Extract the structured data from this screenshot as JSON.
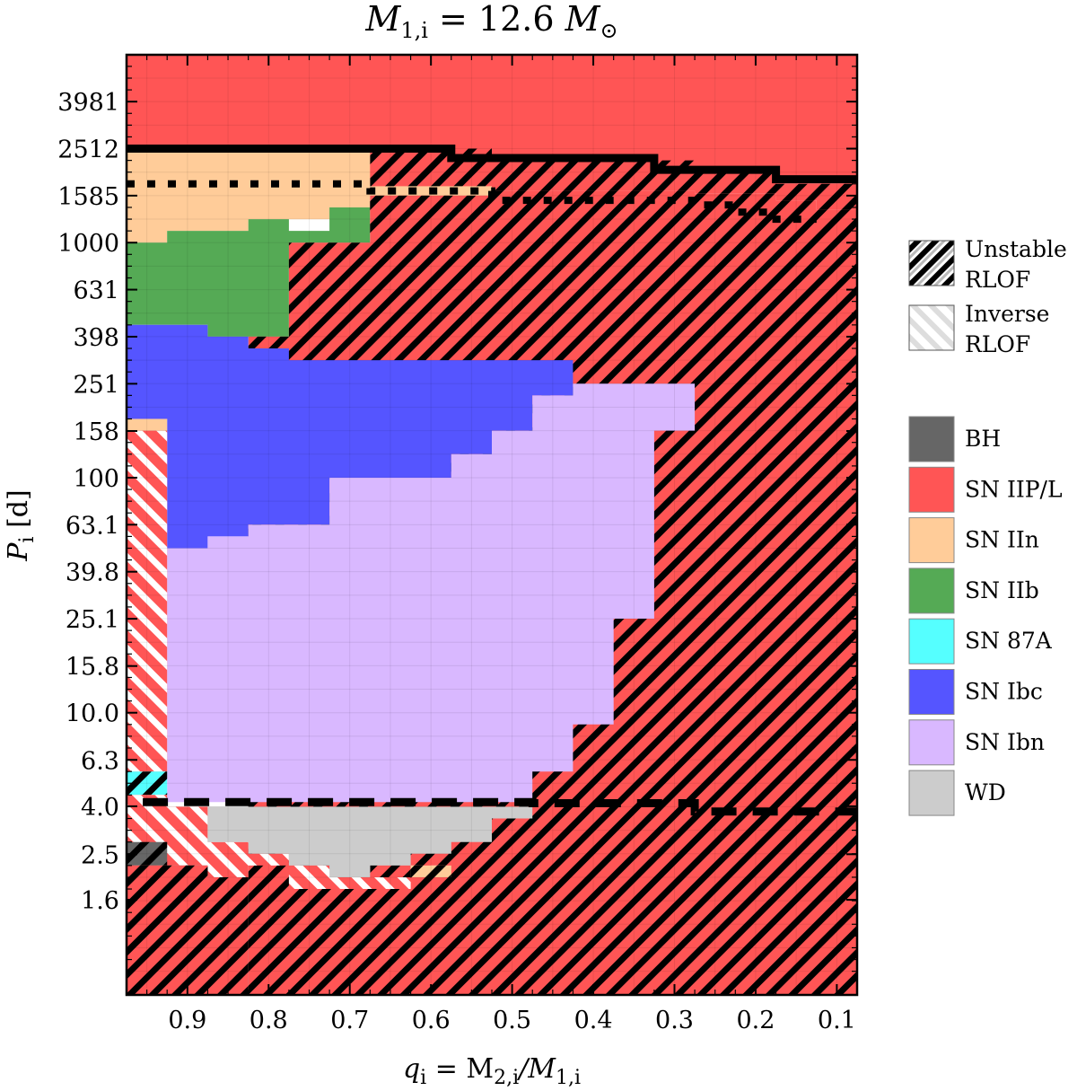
{
  "chart_data": {
    "type": "heatmap",
    "title": {
      "main": "M",
      "sub": "1,i",
      "rest": " = 12.6 ",
      "unit": "M",
      "unit_sub": "⊙"
    },
    "xlabel": {
      "main": "q",
      "sub": "i",
      "rest": " = M",
      "sub2": "2,i",
      "slash": "/M",
      "sub3": "1,i"
    },
    "ylabel": {
      "main": "P",
      "sub": "i",
      "rest": " [d]"
    },
    "x_ticks": [
      "0.9",
      "0.8",
      "0.7",
      "0.6",
      "0.5",
      "0.4",
      "0.3",
      "0.2",
      "0.1"
    ],
    "x_tick_values": [
      0.9,
      0.8,
      0.7,
      0.6,
      0.5,
      0.4,
      0.3,
      0.2,
      0.1
    ],
    "xlim": [
      0.975,
      0.075
    ],
    "x_inverted": true,
    "y_ticks": [
      "3981",
      "2512",
      "1585",
      "1000",
      "631",
      "398",
      "251",
      "158",
      "100",
      "63.1",
      "39.8",
      "25.1",
      "15.8",
      "10.0",
      "6.3",
      "4.0",
      "2.5",
      "1.6"
    ],
    "y_tick_values": [
      3981,
      2512,
      1585,
      1000,
      631,
      398,
      251,
      158,
      100,
      63.1,
      39.8,
      25.1,
      15.8,
      10.0,
      6.3,
      4.0,
      2.5,
      1.6
    ],
    "y_scale": "log",
    "ylim": [
      0.63,
      6300
    ],
    "x_grid": [
      0.95,
      0.9,
      0.85,
      0.8,
      0.75,
      0.7,
      0.65,
      0.6,
      0.55,
      0.5,
      0.45,
      0.4,
      0.35,
      0.3,
      0.25,
      0.2,
      0.15,
      0.1
    ],
    "y_grid_log": [
      3.8,
      3.7,
      3.6,
      3.5,
      3.4,
      3.3,
      3.2,
      3.1,
      3.0,
      2.9,
      2.8,
      2.7,
      2.6,
      2.5,
      2.4,
      2.3,
      2.2,
      2.1,
      2.0,
      1.9,
      1.8,
      1.7,
      1.6,
      1.5,
      1.4,
      1.3,
      1.2,
      1.1,
      1.0,
      0.9,
      0.8,
      0.7,
      0.6,
      0.5,
      0.4,
      0.3,
      0.2,
      0.1,
      0.0,
      -0.1
    ],
    "colors": {
      "BH": "#666666",
      "SN IIP/L": "#ff5555",
      "SN IIn": "#ffcc99",
      "SN IIb": "#55aa55",
      "SN 87A": "#55ffff",
      "SN Ibc": "#5555ff",
      "SN Ibn": "#d9b8ff",
      "WD": "#cccccc"
    },
    "legend_hatch": [
      {
        "label": [
          "Unstable",
          "RLOF"
        ],
        "style": "unstable"
      },
      {
        "label": [
          "Inverse",
          "RLOF"
        ],
        "style": "inverse"
      }
    ],
    "legend_classes": [
      "BH",
      "SN IIP/L",
      "SN IIn",
      "SN IIb",
      "SN 87A",
      "SN Ibc",
      "SN Ibn",
      "WD"
    ],
    "regions": [
      {
        "cls": "SN IIP/L",
        "hatch": "none",
        "poly": [
          [
            0.975,
            3.8
          ],
          [
            0.075,
            3.8
          ],
          [
            0.075,
            3.25
          ],
          [
            0.975,
            3.25
          ]
        ]
      },
      {
        "cls": "SN IIP/L",
        "hatch": "unstable",
        "poly": [
          [
            0.675,
            3.4
          ],
          [
            0.525,
            3.4
          ],
          [
            0.525,
            3.35
          ],
          [
            0.275,
            3.35
          ],
          [
            0.275,
            3.3
          ],
          [
            0.175,
            3.3
          ],
          [
            0.175,
            3.25
          ],
          [
            0.075,
            3.25
          ],
          [
            0.075,
            3.14
          ],
          [
            0.125,
            3.14
          ],
          [
            0.125,
            3.18
          ],
          [
            0.175,
            3.18
          ],
          [
            0.175,
            3.21
          ],
          [
            0.275,
            3.21
          ],
          [
            0.275,
            3.22
          ],
          [
            0.525,
            3.22
          ],
          [
            0.525,
            3.2
          ],
          [
            0.675,
            3.2
          ]
        ]
      },
      {
        "cls": "SN IIn",
        "hatch": "none",
        "poly": [
          [
            0.675,
            3.2
          ],
          [
            0.525,
            3.2
          ],
          [
            0.525,
            3.24
          ],
          [
            0.675,
            3.24
          ]
        ]
      },
      {
        "cls": "SN IIn",
        "hatch": "none",
        "poly": [
          [
            0.975,
            3.4
          ],
          [
            0.675,
            3.4
          ],
          [
            0.675,
            3.1
          ],
          [
            0.825,
            3.1
          ],
          [
            0.825,
            3.05
          ],
          [
            0.925,
            3.05
          ],
          [
            0.925,
            3.0
          ],
          [
            0.975,
            3.0
          ]
        ]
      },
      {
        "cls": "SN IIb",
        "hatch": "none",
        "poly": [
          [
            0.725,
            3.15
          ],
          [
            0.675,
            3.15
          ],
          [
            0.675,
            3.0
          ],
          [
            0.775,
            3.0
          ],
          [
            0.775,
            2.9
          ],
          [
            0.825,
            2.9
          ],
          [
            0.825,
            3.05
          ],
          [
            0.725,
            3.05
          ]
        ]
      },
      {
        "cls": "SN IIb",
        "hatch": "none",
        "poly": [
          [
            0.975,
            3.0
          ],
          [
            0.925,
            3.0
          ],
          [
            0.925,
            3.05
          ],
          [
            0.825,
            3.05
          ],
          [
            0.825,
            3.1
          ],
          [
            0.775,
            3.1
          ],
          [
            0.775,
            2.6
          ],
          [
            0.875,
            2.6
          ],
          [
            0.875,
            2.65
          ],
          [
            0.975,
            2.65
          ]
        ]
      },
      {
        "cls": "SN IIP/L",
        "hatch": "unstable",
        "poly": [
          [
            0.775,
            3.0
          ],
          [
            0.675,
            3.0
          ],
          [
            0.675,
            3.2
          ],
          [
            0.525,
            3.2
          ],
          [
            0.525,
            3.22
          ],
          [
            0.275,
            3.22
          ],
          [
            0.275,
            3.21
          ],
          [
            0.175,
            3.21
          ],
          [
            0.175,
            3.18
          ],
          [
            0.125,
            3.18
          ],
          [
            0.125,
            3.14
          ],
          [
            0.075,
            3.14
          ],
          [
            0.075,
            -0.2
          ],
          [
            0.825,
            -0.2
          ],
          [
            0.825,
            0.1
          ],
          [
            0.825,
            2.6
          ],
          [
            0.775,
            2.6
          ]
        ]
      },
      {
        "cls": "SN Ibc",
        "hatch": "none",
        "poly": [
          [
            0.975,
            2.65
          ],
          [
            0.875,
            2.65
          ],
          [
            0.875,
            2.6
          ],
          [
            0.825,
            2.6
          ],
          [
            0.825,
            2.55
          ],
          [
            0.775,
            2.55
          ],
          [
            0.775,
            2.5
          ],
          [
            0.425,
            2.5
          ],
          [
            0.425,
            2.35
          ],
          [
            0.475,
            2.35
          ],
          [
            0.475,
            2.2
          ],
          [
            0.525,
            2.2
          ],
          [
            0.525,
            2.1
          ],
          [
            0.575,
            2.1
          ],
          [
            0.575,
            2.0
          ],
          [
            0.725,
            2.0
          ],
          [
            0.725,
            1.8
          ],
          [
            0.825,
            1.8
          ],
          [
            0.825,
            1.75
          ],
          [
            0.875,
            1.75
          ],
          [
            0.875,
            1.7
          ],
          [
            0.925,
            1.7
          ],
          [
            0.925,
            2.25
          ],
          [
            0.975,
            2.25
          ]
        ]
      },
      {
        "cls": "SN IIn",
        "hatch": "none",
        "poly": [
          [
            0.975,
            2.25
          ],
          [
            0.925,
            2.25
          ],
          [
            0.925,
            2.2
          ],
          [
            0.975,
            2.2
          ]
        ]
      },
      {
        "cls": "SN Ibn",
        "hatch": "none",
        "poly": [
          [
            0.925,
            1.7
          ],
          [
            0.875,
            1.7
          ],
          [
            0.875,
            1.75
          ],
          [
            0.825,
            1.75
          ],
          [
            0.825,
            1.8
          ],
          [
            0.725,
            1.8
          ],
          [
            0.725,
            2.0
          ],
          [
            0.575,
            2.0
          ],
          [
            0.575,
            2.1
          ],
          [
            0.525,
            2.1
          ],
          [
            0.525,
            2.2
          ],
          [
            0.475,
            2.2
          ],
          [
            0.475,
            2.35
          ],
          [
            0.425,
            2.35
          ],
          [
            0.425,
            2.4
          ],
          [
            0.275,
            2.4
          ],
          [
            0.275,
            2.2
          ],
          [
            0.325,
            2.2
          ],
          [
            0.325,
            1.4
          ],
          [
            0.375,
            1.4
          ],
          [
            0.375,
            0.95
          ],
          [
            0.425,
            0.95
          ],
          [
            0.425,
            0.75
          ],
          [
            0.475,
            0.75
          ],
          [
            0.475,
            0.62
          ],
          [
            0.925,
            0.62
          ]
        ]
      },
      {
        "cls": "SN IIP/L",
        "hatch": "inverse",
        "poly": [
          [
            0.975,
            2.2
          ],
          [
            0.925,
            2.2
          ],
          [
            0.925,
            0.75
          ],
          [
            0.975,
            0.75
          ]
        ]
      },
      {
        "cls": "SN 87A",
        "hatch": "unstable",
        "poly": [
          [
            0.975,
            0.75
          ],
          [
            0.925,
            0.75
          ],
          [
            0.925,
            0.65
          ],
          [
            0.975,
            0.65
          ]
        ]
      },
      {
        "cls": "SN IIP/L",
        "hatch": "inverse",
        "poly": [
          [
            0.975,
            0.65
          ],
          [
            0.925,
            0.65
          ],
          [
            0.925,
            0.6
          ],
          [
            0.875,
            0.6
          ],
          [
            0.875,
            0.45
          ],
          [
            0.825,
            0.45
          ],
          [
            0.825,
            0.4
          ],
          [
            0.775,
            0.4
          ],
          [
            0.775,
            0.35
          ],
          [
            0.675,
            0.35
          ],
          [
            0.675,
            0.3
          ],
          [
            0.575,
            0.3
          ],
          [
            0.575,
            0.35
          ],
          [
            0.625,
            0.35
          ],
          [
            0.625,
            0.25
          ],
          [
            0.775,
            0.25
          ],
          [
            0.775,
            0.35
          ],
          [
            0.825,
            0.35
          ],
          [
            0.825,
            0.3
          ],
          [
            0.875,
            0.3
          ],
          [
            0.875,
            0.35
          ],
          [
            0.975,
            0.35
          ]
        ]
      },
      {
        "cls": "WD",
        "hatch": "none",
        "poly": [
          [
            0.875,
            0.6
          ],
          [
            0.475,
            0.6
          ],
          [
            0.475,
            0.55
          ],
          [
            0.525,
            0.55
          ],
          [
            0.525,
            0.45
          ],
          [
            0.575,
            0.45
          ],
          [
            0.575,
            0.4
          ],
          [
            0.625,
            0.4
          ],
          [
            0.625,
            0.35
          ],
          [
            0.675,
            0.35
          ],
          [
            0.675,
            0.3
          ],
          [
            0.725,
            0.3
          ],
          [
            0.725,
            0.35
          ],
          [
            0.775,
            0.35
          ],
          [
            0.775,
            0.4
          ],
          [
            0.825,
            0.4
          ],
          [
            0.825,
            0.45
          ],
          [
            0.875,
            0.45
          ]
        ]
      },
      {
        "cls": "SN IIn",
        "hatch": "unstable",
        "poly": [
          [
            0.625,
            0.35
          ],
          [
            0.575,
            0.35
          ],
          [
            0.575,
            0.3
          ],
          [
            0.625,
            0.3
          ]
        ]
      },
      {
        "cls": "BH",
        "hatch": "unstable",
        "poly": [
          [
            0.975,
            0.45
          ],
          [
            0.925,
            0.45
          ],
          [
            0.925,
            0.35
          ],
          [
            0.975,
            0.35
          ]
        ]
      },
      {
        "cls": "BH",
        "hatch": "unstable",
        "poly": [
          [
            0.925,
            0.35
          ],
          [
            0.875,
            0.35
          ],
          [
            0.875,
            0.3
          ],
          [
            0.925,
            0.3
          ]
        ]
      },
      {
        "cls": "BH",
        "hatch": "unstable",
        "poly": [
          [
            0.875,
            0.3
          ],
          [
            0.825,
            0.3
          ],
          [
            0.825,
            -0.2
          ],
          [
            0.875,
            -0.2
          ]
        ]
      },
      {
        "cls": "SN IIP/L",
        "hatch": "unstable",
        "poly": [
          [
            0.975,
            0.35
          ],
          [
            0.875,
            0.35
          ],
          [
            0.875,
            0.3
          ],
          [
            0.825,
            0.3
          ],
          [
            0.825,
            -0.2
          ],
          [
            0.975,
            -0.2
          ]
        ]
      }
    ],
    "boundary_solid": [
      [
        0.975,
        3.4
      ],
      [
        0.575,
        3.4
      ],
      [
        0.575,
        3.36
      ],
      [
        0.325,
        3.36
      ],
      [
        0.325,
        3.31
      ],
      [
        0.175,
        3.31
      ],
      [
        0.175,
        3.27
      ],
      [
        0.075,
        3.27
      ]
    ],
    "boundary_dotted": [
      [
        0.975,
        3.25
      ],
      [
        0.675,
        3.25
      ],
      [
        0.675,
        3.22
      ],
      [
        0.525,
        3.22
      ],
      [
        0.525,
        3.18
      ],
      [
        0.275,
        3.18
      ],
      [
        0.275,
        3.16
      ],
      [
        0.225,
        3.16
      ],
      [
        0.225,
        3.13
      ],
      [
        0.175,
        3.13
      ],
      [
        0.175,
        3.1
      ],
      [
        0.125,
        3.1
      ]
    ],
    "boundary_dashed": [
      [
        0.955,
        0.62
      ],
      [
        0.475,
        0.62
      ],
      [
        0.475,
        0.615
      ],
      [
        0.275,
        0.615
      ],
      [
        0.275,
        0.58
      ],
      [
        0.075,
        0.58
      ]
    ]
  }
}
